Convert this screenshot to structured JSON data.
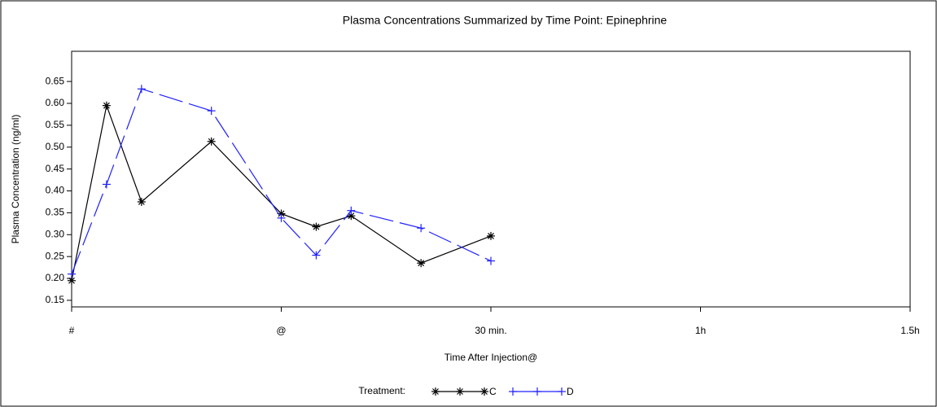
{
  "chart_data": {
    "type": "line",
    "title": "Plasma Concentrations Summarized by Time Point: Epinephrine",
    "x_label": "Time After Injection@",
    "y_label": "Plasma Concentration (ng/ml)",
    "x": [
      -30,
      -25,
      -20,
      -10,
      0,
      5,
      10,
      20,
      30
    ],
    "series": [
      {
        "name": "C",
        "color": "#000000",
        "marker": "asterisk",
        "dashed": false,
        "values": [
          0.195,
          0.595,
          0.375,
          0.513,
          0.348,
          0.318,
          0.343,
          0.235,
          0.297
        ]
      },
      {
        "name": "D",
        "color": "#2020ff",
        "marker": "plus",
        "dashed": true,
        "values": [
          0.21,
          0.415,
          0.633,
          0.583,
          0.338,
          0.253,
          0.355,
          0.315,
          0.24
        ]
      }
    ],
    "xlim": [
      -30,
      90
    ],
    "xticks": [
      {
        "value": -30,
        "label": "#"
      },
      {
        "value": 0,
        "label": "@"
      },
      {
        "value": 30,
        "label": "30 min."
      },
      {
        "value": 60,
        "label": "1h"
      },
      {
        "value": 90,
        "label": "1.5h"
      }
    ],
    "ylim": [
      0.135,
      0.719
    ],
    "yticks": [
      0.15,
      {
        "value": 0.2,
        "label": "0.20"
      },
      0.25,
      {
        "value": 0.3,
        "label": "0.30"
      },
      0.35,
      {
        "value": 0.4,
        "label": "0.40"
      },
      0.45,
      {
        "value": 0.5,
        "label": "0.50"
      },
      0.55,
      {
        "value": 0.6,
        "label": "0.60"
      },
      0.65
    ],
    "legend_title": "Treatment:",
    "grid": false
  }
}
